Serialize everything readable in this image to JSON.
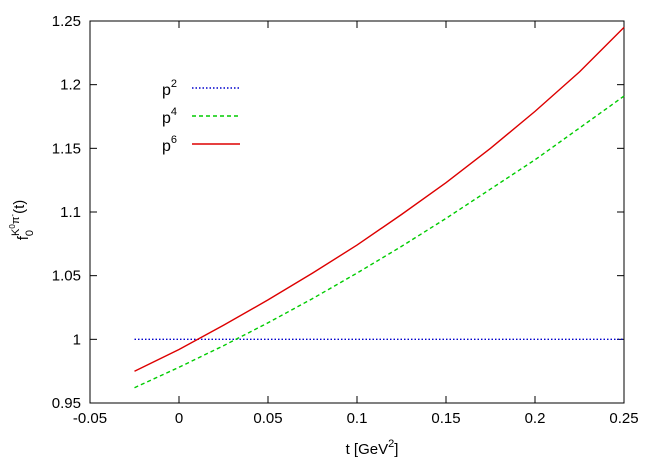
{
  "chart_data": {
    "type": "line",
    "title": "",
    "xlabel": {
      "base": "t [GeV",
      "sup": "2",
      "tail": "]"
    },
    "ylabel": {
      "main": "f",
      "sub": "0",
      "sup": "K",
      "sup_sup": "0",
      "sup_tail": "π",
      "sup_tail_sup": "-",
      "arg": "(t)"
    },
    "xlim": [
      -0.05,
      0.25
    ],
    "ylim": [
      0.95,
      1.25
    ],
    "x_ticks": [
      "-0.05",
      "0",
      "0.05",
      "0.1",
      "0.15",
      "0.2",
      "0.25"
    ],
    "x_tick_values": [
      -0.05,
      0,
      0.05,
      0.1,
      0.15,
      0.2,
      0.25
    ],
    "y_ticks": [
      "0.95",
      "1",
      "1.05",
      "1.1",
      "1.15",
      "1.2",
      "1.25"
    ],
    "y_tick_values": [
      0.95,
      1.0,
      1.05,
      1.1,
      1.15,
      1.2,
      1.25
    ],
    "grid": false,
    "legend_position": "top-left",
    "series": [
      {
        "name": "p2",
        "label_base": "p",
        "label_sup": "2",
        "color": "#0000cc",
        "style": "dotted",
        "x": [
          -0.025,
          0.25
        ],
        "y": [
          1.0,
          1.0
        ]
      },
      {
        "name": "p4",
        "label_base": "p",
        "label_sup": "4",
        "color": "#00cc00",
        "style": "dashed",
        "x": [
          -0.025,
          0.0,
          0.025,
          0.05,
          0.075,
          0.1,
          0.125,
          0.15,
          0.175,
          0.2,
          0.225,
          0.25
        ],
        "y": [
          0.962,
          0.978,
          0.995,
          1.013,
          1.032,
          1.052,
          1.073,
          1.095,
          1.118,
          1.141,
          1.166,
          1.191
        ]
      },
      {
        "name": "p6",
        "label_base": "p",
        "label_sup": "6",
        "color": "#dd0000",
        "style": "solid",
        "x": [
          -0.025,
          0.0,
          0.025,
          0.05,
          0.075,
          0.1,
          0.125,
          0.15,
          0.175,
          0.2,
          0.225,
          0.25
        ],
        "y": [
          0.975,
          0.992,
          1.011,
          1.031,
          1.052,
          1.074,
          1.098,
          1.123,
          1.15,
          1.179,
          1.21,
          1.245
        ]
      }
    ]
  }
}
